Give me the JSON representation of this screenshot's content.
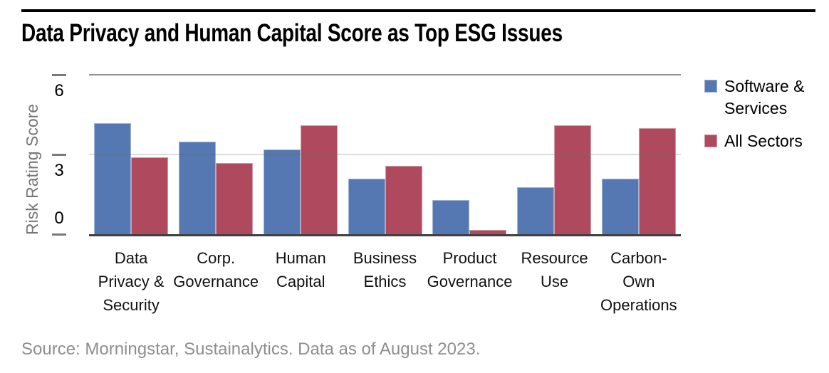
{
  "title": "Data Privacy and Human Capital Score as Top ESG Issues",
  "source_note": "Source: Morningstar, Sustainalytics. Data as of August 2023.",
  "y_axis": {
    "label": "Risk Rating Score",
    "tick_labels": [
      "6",
      "3",
      "0"
    ]
  },
  "x_axis": {
    "tick_labels": [
      "Data\nPrivacy &\nSecurity",
      "Corp.\nGovernance",
      "Human\nCapital",
      "Business\nEthics",
      "Product\nGovernance",
      "Resource\nUse",
      "Carbon-Own\nOperations"
    ]
  },
  "legend": {
    "items": [
      {
        "label": "Software & Services",
        "color": "#5577b2"
      },
      {
        "label": "All Sectors",
        "color": "#af4a5e"
      }
    ]
  },
  "colors": {
    "software_services": "#5577b2",
    "all_sectors": "#af4a5e",
    "axis_line": "#3f3f3f",
    "gridline_top": "#8f8f8f",
    "gridline_mid": "#d4d4d4",
    "tick": "#7a7a7a",
    "y_axis_title_text": "#757575",
    "source_text": "#8e8e8e"
  },
  "chart_data": {
    "type": "bar",
    "categories": [
      "Data Privacy & Security",
      "Corp. Governance",
      "Human Capital",
      "Business Ethics",
      "Product Governance",
      "Resource Use",
      "Carbon-Own Operations"
    ],
    "series": [
      {
        "name": "Software & Services",
        "color": "#5577b2",
        "values": [
          4.2,
          3.5,
          3.2,
          2.1,
          1.3,
          1.8,
          2.1
        ]
      },
      {
        "name": "All Sectors",
        "color": "#af4a5e",
        "values": [
          2.9,
          2.7,
          4.1,
          2.6,
          0.2,
          4.1,
          4.0
        ]
      }
    ],
    "title": "Data Privacy and Human Capital Score as Top ESG Issues",
    "xlabel": "",
    "ylabel": "Risk Rating Score",
    "ylim": [
      0,
      6
    ],
    "yticks": [
      6,
      3,
      0
    ],
    "grid": true,
    "legend_position": "top-right"
  }
}
